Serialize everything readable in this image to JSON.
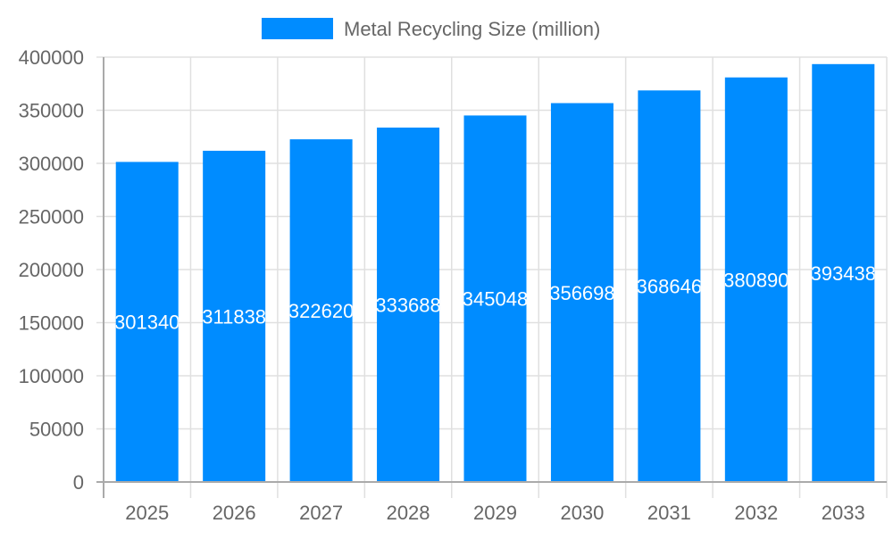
{
  "chart_data": {
    "type": "bar",
    "categories": [
      "2025",
      "2026",
      "2027",
      "2028",
      "2029",
      "2030",
      "2031",
      "2032",
      "2033"
    ],
    "series": [
      {
        "name": "Metal Recycling Size (million)",
        "values": [
          301340,
          311838,
          322620,
          333688,
          345048,
          356698,
          368646,
          380890,
          393438
        ],
        "color": "#008cff"
      }
    ],
    "ylim": [
      0,
      400000
    ],
    "yticks": [
      0,
      50000,
      100000,
      150000,
      200000,
      250000,
      300000,
      350000,
      400000
    ],
    "grid": true,
    "legend_position": "top",
    "data_labels": true,
    "colors": {
      "grid": "#e0e0e0",
      "axis": "#aaaaaa",
      "tick_text": "#666666",
      "label_text": "#ffffff"
    }
  }
}
